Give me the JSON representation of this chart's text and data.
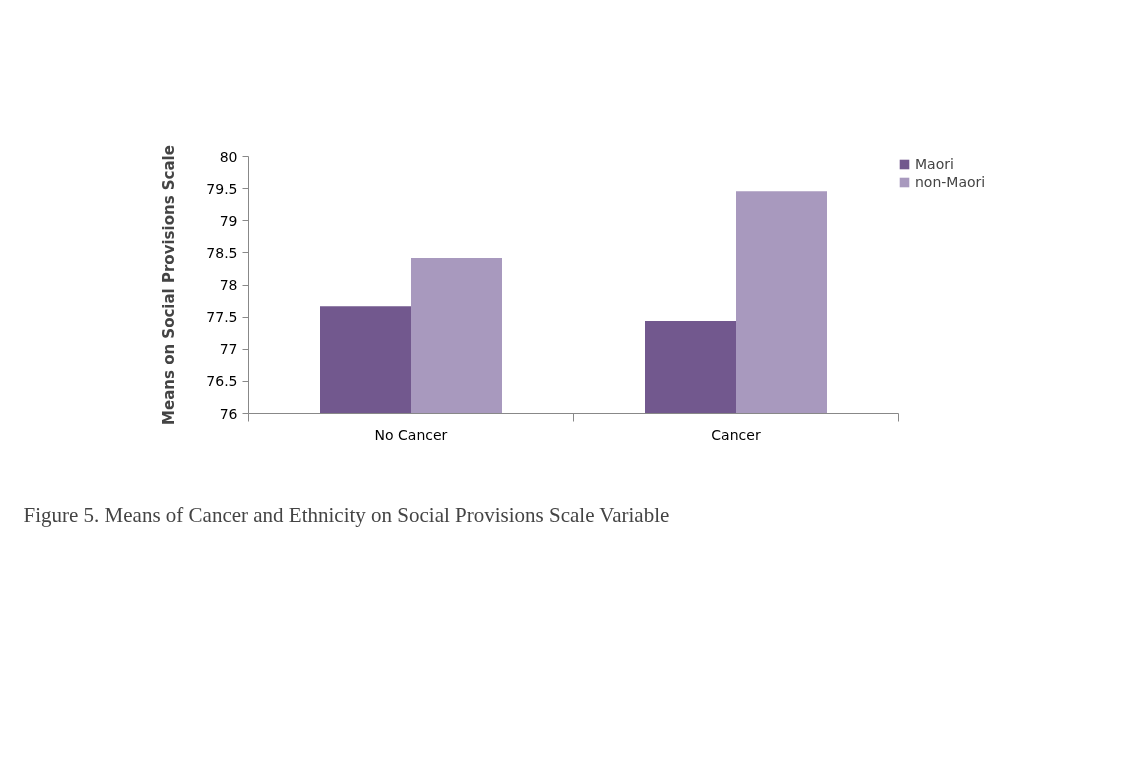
{
  "chart_data": {
    "type": "bar",
    "categories": [
      "No Cancer",
      "Cancer"
    ],
    "series": [
      {
        "name": "Maori",
        "color": "#72588e",
        "values": [
          77.67,
          77.44
        ]
      },
      {
        "name": "non-Maori",
        "color": "#a899be",
        "values": [
          78.42,
          79.46
        ]
      }
    ],
    "ylabel": "Means on Social Provisions Scale",
    "ylim": [
      76,
      80
    ],
    "yticks": [
      76,
      76.5,
      77,
      77.5,
      78,
      78.5,
      79,
      79.5,
      80
    ],
    "grid": false,
    "legend": "right",
    "annotations": [
      "Figure 5. Means of Cancer and Ethnicity on Social Provisions Scale Variable"
    ]
  }
}
